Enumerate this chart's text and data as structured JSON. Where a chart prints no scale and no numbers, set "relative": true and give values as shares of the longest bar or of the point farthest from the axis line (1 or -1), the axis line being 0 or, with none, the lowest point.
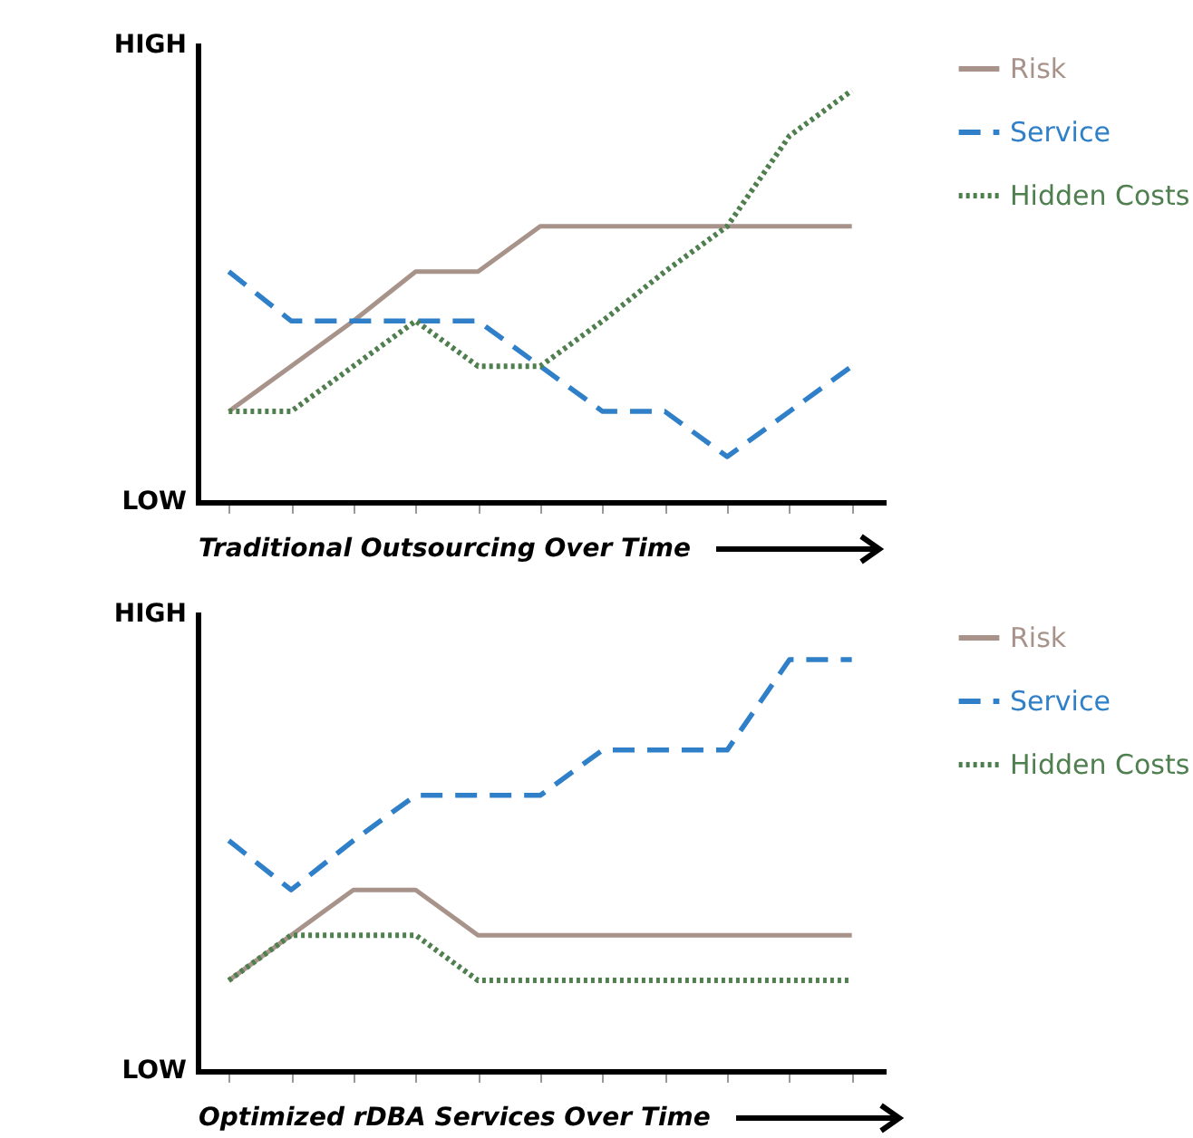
{
  "chart_data": [
    {
      "type": "line",
      "relative": true,
      "xlabel": "Traditional Outsourcing Over Time",
      "annotations": [
        "HIGH",
        "LOW"
      ],
      "legend": "right",
      "categories": [
        null,
        null,
        null,
        null,
        null,
        null,
        null,
        null,
        null,
        null,
        null
      ],
      "series": [
        {
          "name": "Risk",
          "color": "#a8938a",
          "line_style": "solid",
          "values": [
            0.22,
            0.33,
            0.44,
            0.56,
            0.56,
            0.67,
            0.67,
            0.67,
            0.67,
            0.67,
            0.67
          ]
        },
        {
          "name": "Service",
          "color": "#2f80c8",
          "line_style": "dashed",
          "values": [
            0.56,
            0.44,
            0.44,
            0.44,
            0.44,
            0.33,
            0.22,
            0.22,
            0.11,
            0.22,
            0.33
          ]
        },
        {
          "name": "Hidden Costs",
          "color": "#4f7f4f",
          "line_style": "dotted",
          "values": [
            0.22,
            0.22,
            0.33,
            0.44,
            0.33,
            0.33,
            0.44,
            0.56,
            0.67,
            0.89,
            1
          ]
        }
      ]
    },
    {
      "type": "line",
      "relative": true,
      "xlabel": "Optimized rDBA Services Over Time",
      "annotations": [
        "HIGH",
        "LOW"
      ],
      "legend": "right",
      "categories": [
        null,
        null,
        null,
        null,
        null,
        null,
        null,
        null,
        null,
        null,
        null
      ],
      "series": [
        {
          "name": "Risk",
          "color": "#a8938a",
          "line_style": "solid",
          "values": [
            0.22,
            0.33,
            0.44,
            0.44,
            0.33,
            0.33,
            0.33,
            0.33,
            0.33,
            0.33,
            0.33
          ]
        },
        {
          "name": "Service",
          "color": "#2f80c8",
          "line_style": "dashed",
          "values": [
            0.56,
            0.44,
            0.56,
            0.67,
            0.67,
            0.67,
            0.78,
            0.78,
            0.78,
            1,
            1
          ]
        },
        {
          "name": "Hidden Costs",
          "color": "#4f7f4f",
          "line_style": "dotted",
          "values": [
            0.22,
            0.33,
            0.33,
            0.33,
            0.22,
            0.22,
            0.22,
            0.22,
            0.22,
            0.22,
            0.22
          ]
        }
      ]
    }
  ]
}
